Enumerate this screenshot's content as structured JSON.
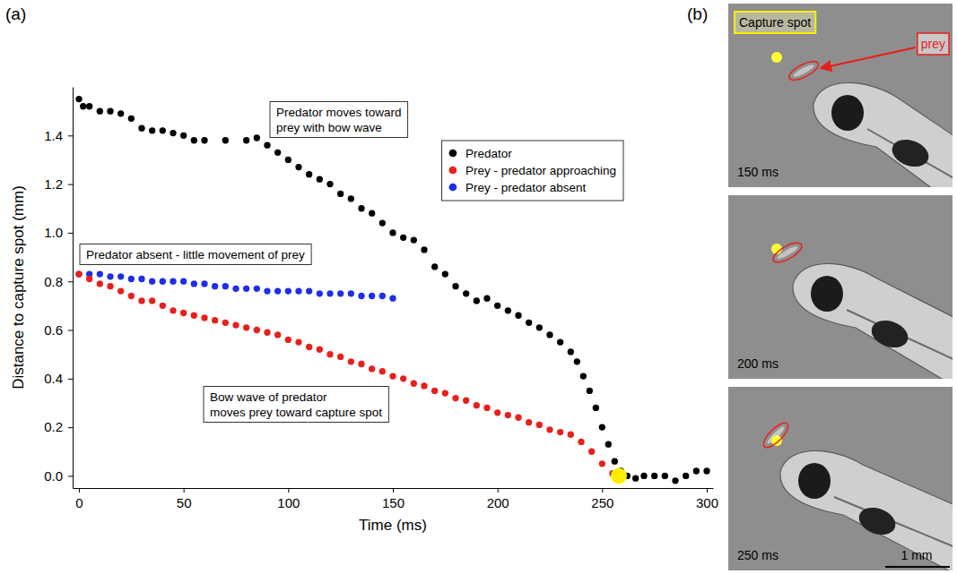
{
  "figure": {
    "panel_labels": [
      "(a)",
      "(b)"
    ]
  },
  "chart_data": {
    "type": "scatter",
    "x_label": "Time (ms)",
    "y_label": "Distance to capture spot (mm)",
    "xlim": [
      -3,
      303
    ],
    "xticks": [
      0,
      50,
      100,
      150,
      200,
      250,
      300
    ],
    "ylim": [
      -0.05,
      1.6
    ],
    "yticks": [
      {
        "value": 0,
        "label": "0.0"
      },
      0.2,
      0.4,
      0.6,
      0.8,
      {
        "value": 1,
        "label": "1.0"
      },
      1.2,
      1.4
    ],
    "legend": "upper right",
    "marker": "circle",
    "series": [
      {
        "name": "Predator",
        "color": "#000000",
        "x": [
          0,
          2,
          5,
          10,
          15,
          20,
          25,
          30,
          35,
          40,
          45,
          50,
          55,
          60,
          70,
          80,
          85,
          90,
          95,
          100,
          105,
          110,
          115,
          120,
          125,
          130,
          135,
          140,
          145,
          150,
          155,
          160,
          165,
          170,
          175,
          180,
          185,
          190,
          195,
          200,
          205,
          210,
          215,
          220,
          225,
          230,
          235,
          238,
          241,
          244,
          247,
          250,
          253,
          256,
          259,
          262,
          266,
          270,
          275,
          280,
          285,
          290,
          295,
          300
        ],
        "values": [
          1.55,
          1.52,
          1.52,
          1.5,
          1.5,
          1.49,
          1.47,
          1.43,
          1.42,
          1.42,
          1.41,
          1.4,
          1.38,
          1.38,
          1.38,
          1.38,
          1.39,
          1.36,
          1.33,
          1.3,
          1.27,
          1.24,
          1.22,
          1.2,
          1.16,
          1.14,
          1.1,
          1.08,
          1.04,
          1.0,
          0.98,
          0.97,
          0.93,
          0.86,
          0.83,
          0.78,
          0.75,
          0.72,
          0.73,
          0.7,
          0.68,
          0.66,
          0.63,
          0.61,
          0.58,
          0.55,
          0.51,
          0.47,
          0.41,
          0.35,
          0.28,
          0.2,
          0.13,
          0.06,
          0.02,
          0.0,
          -0.01,
          0.0,
          0.0,
          0.0,
          -0.02,
          0.0,
          0.02,
          0.02
        ]
      },
      {
        "name": "Prey - predator approaching",
        "color": "#e8201c",
        "x": [
          0,
          5,
          10,
          15,
          20,
          25,
          30,
          35,
          40,
          45,
          50,
          55,
          60,
          65,
          70,
          75,
          80,
          85,
          90,
          95,
          100,
          105,
          110,
          115,
          120,
          125,
          130,
          135,
          140,
          145,
          150,
          155,
          160,
          165,
          170,
          175,
          180,
          185,
          190,
          195,
          200,
          205,
          210,
          215,
          220,
          225,
          230,
          235,
          240,
          245,
          250,
          255
        ],
        "values": [
          0.83,
          0.81,
          0.79,
          0.78,
          0.76,
          0.74,
          0.72,
          0.72,
          0.7,
          0.68,
          0.67,
          0.66,
          0.65,
          0.64,
          0.63,
          0.62,
          0.61,
          0.6,
          0.59,
          0.58,
          0.56,
          0.55,
          0.53,
          0.52,
          0.5,
          0.49,
          0.47,
          0.46,
          0.44,
          0.43,
          0.41,
          0.4,
          0.38,
          0.37,
          0.35,
          0.34,
          0.32,
          0.31,
          0.29,
          0.28,
          0.26,
          0.25,
          0.24,
          0.22,
          0.21,
          0.19,
          0.18,
          0.17,
          0.14,
          0.1,
          0.05,
          0.01
        ]
      },
      {
        "name": "Prey - predator absent",
        "color": "#1f2ee8",
        "x": [
          0,
          5,
          10,
          15,
          20,
          25,
          30,
          35,
          40,
          45,
          50,
          55,
          60,
          65,
          70,
          75,
          80,
          85,
          90,
          95,
          100,
          105,
          110,
          115,
          120,
          125,
          130,
          135,
          140,
          145,
          150
        ],
        "values": [
          0.83,
          0.83,
          0.83,
          0.82,
          0.82,
          0.81,
          0.81,
          0.8,
          0.8,
          0.8,
          0.8,
          0.79,
          0.79,
          0.78,
          0.78,
          0.77,
          0.77,
          0.77,
          0.76,
          0.76,
          0.76,
          0.76,
          0.76,
          0.75,
          0.75,
          0.75,
          0.75,
          0.74,
          0.74,
          0.74,
          0.73
        ]
      }
    ],
    "capture_marker": {
      "x": 258,
      "y": 0,
      "color": "#ffee00"
    },
    "annotations": [
      "Predator moves toward prey with bow wave",
      "Predator absent - little movement of prey",
      "Bow wave of predator moves prey toward capture spot"
    ]
  },
  "panel_b": {
    "capture_label": "Capture spot",
    "prey_label": "prey",
    "frame_labels": [
      "150 ms",
      "200 ms",
      "250 ms"
    ],
    "scale_label": "1 mm"
  }
}
